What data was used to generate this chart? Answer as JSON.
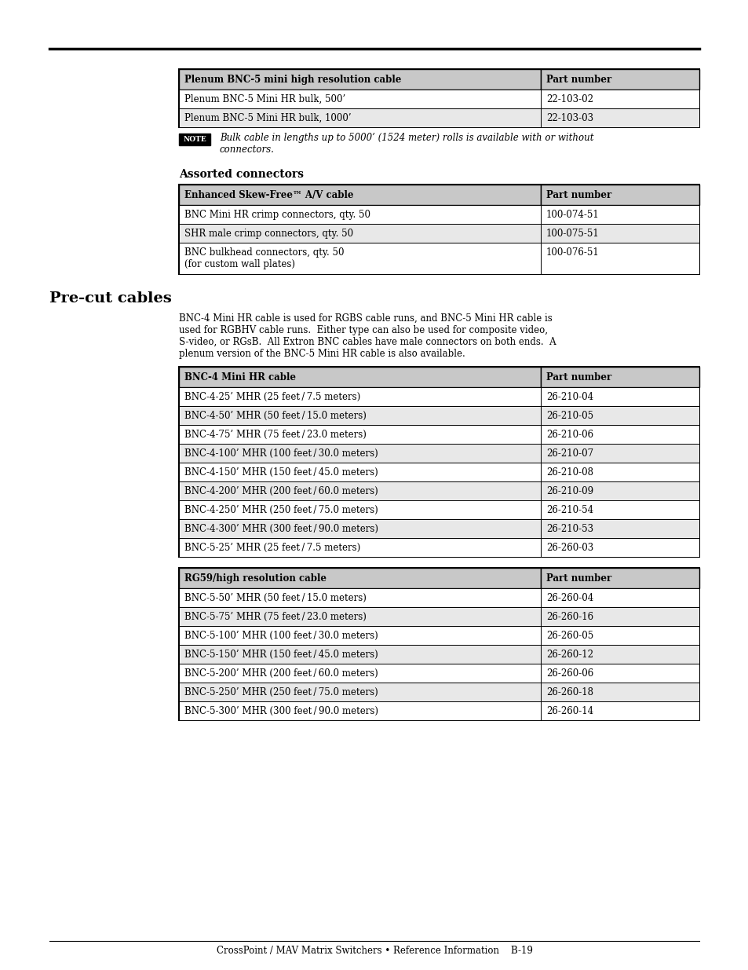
{
  "page_bg": "#ffffff",
  "horizontal_rule_color": "#000000",
  "table1_title": "Plenum BNC-5 mini high resolution cable",
  "table1_col2": "Part number",
  "table1_header_bg": "#c8c8c8",
  "table1_rows": [
    [
      "Plenum BNC-5 Mini HR bulk, 500’",
      "22-103-02"
    ],
    [
      "Plenum BNC-5 Mini HR bulk, 1000’",
      "22-103-03"
    ]
  ],
  "table1_row_bg": [
    "#ffffff",
    "#e8e8e8"
  ],
  "note_label": "NOTE",
  "note_text": "Bulk cable in lengths up to 5000’ (1524 meter) rolls is available with or without\nconnectors.",
  "section1_title": "Assorted connectors",
  "table2_title": "Enhanced Skew-Free™ A/V cable",
  "table2_col2": "Part number",
  "table2_header_bg": "#c8c8c8",
  "table2_rows": [
    [
      "BNC Mini HR crimp connectors, qty. 50",
      "100-074-51"
    ],
    [
      "SHR male crimp connectors, qty. 50",
      "100-075-51"
    ],
    [
      "BNC bulkhead connectors, qty. 50\n(for custom wall plates)",
      "100-076-51"
    ]
  ],
  "table2_row_bg": [
    "#ffffff",
    "#e8e8e8",
    "#ffffff"
  ],
  "section2_title": "Pre-cut cables",
  "section2_text": "BNC-4 Mini HR cable is used for RGBS cable runs, and BNC-5 Mini HR cable is\nused for RGBHV cable runs.  Either type can also be used for composite video,\nS-video, or RGsB.  All Extron BNC cables have male connectors on both ends.  A\nplenum version of the BNC-5 Mini HR cable is also available.",
  "table3_title": "BNC-4 Mini HR cable",
  "table3_col2": "Part number",
  "table3_header_bg": "#c8c8c8",
  "table3_rows": [
    [
      "BNC-4-25’ MHR (25 feet / 7.5 meters)",
      "26-210-04"
    ],
    [
      "BNC-4-50’ MHR (50 feet / 15.0 meters)",
      "26-210-05"
    ],
    [
      "BNC-4-75’ MHR (75 feet / 23.0 meters)",
      "26-210-06"
    ],
    [
      "BNC-4-100’ MHR (100 feet / 30.0 meters)",
      "26-210-07"
    ],
    [
      "BNC-4-150’ MHR (150 feet / 45.0 meters)",
      "26-210-08"
    ],
    [
      "BNC-4-200’ MHR (200 feet / 60.0 meters)",
      "26-210-09"
    ],
    [
      "BNC-4-250’ MHR (250 feet / 75.0 meters)",
      "26-210-54"
    ],
    [
      "BNC-4-300’ MHR (300 feet / 90.0 meters)",
      "26-210-53"
    ],
    [
      "BNC-5-25’ MHR (25 feet / 7.5 meters)",
      "26-260-03"
    ]
  ],
  "table3_row_bg": [
    "#ffffff",
    "#e8e8e8",
    "#ffffff",
    "#e8e8e8",
    "#ffffff",
    "#e8e8e8",
    "#ffffff",
    "#e8e8e8",
    "#ffffff"
  ],
  "table4_title": "RG59/high resolution cable",
  "table4_col2": "Part number",
  "table4_header_bg": "#c8c8c8",
  "table4_rows": [
    [
      "BNC-5-50’ MHR (50 feet / 15.0 meters)",
      "26-260-04"
    ],
    [
      "BNC-5-75’ MHR (75 feet / 23.0 meters)",
      "26-260-16"
    ],
    [
      "BNC-5-100’ MHR (100 feet / 30.0 meters)",
      "26-260-05"
    ],
    [
      "BNC-5-150’ MHR (150 feet / 45.0 meters)",
      "26-260-12"
    ],
    [
      "BNC-5-200’ MHR (200 feet / 60.0 meters)",
      "26-260-06"
    ],
    [
      "BNC-5-250’ MHR (250 feet / 75.0 meters)",
      "26-260-18"
    ],
    [
      "BNC-5-300’ MHR (300 feet / 90.0 meters)",
      "26-260-14"
    ]
  ],
  "table4_row_bg": [
    "#ffffff",
    "#e8e8e8",
    "#ffffff",
    "#e8e8e8",
    "#ffffff",
    "#e8e8e8",
    "#ffffff"
  ],
  "footer_text": "CrossPoint / MAV Matrix Switchers • Reference Information    B-19",
  "border_color": "#000000",
  "text_color": "#000000"
}
